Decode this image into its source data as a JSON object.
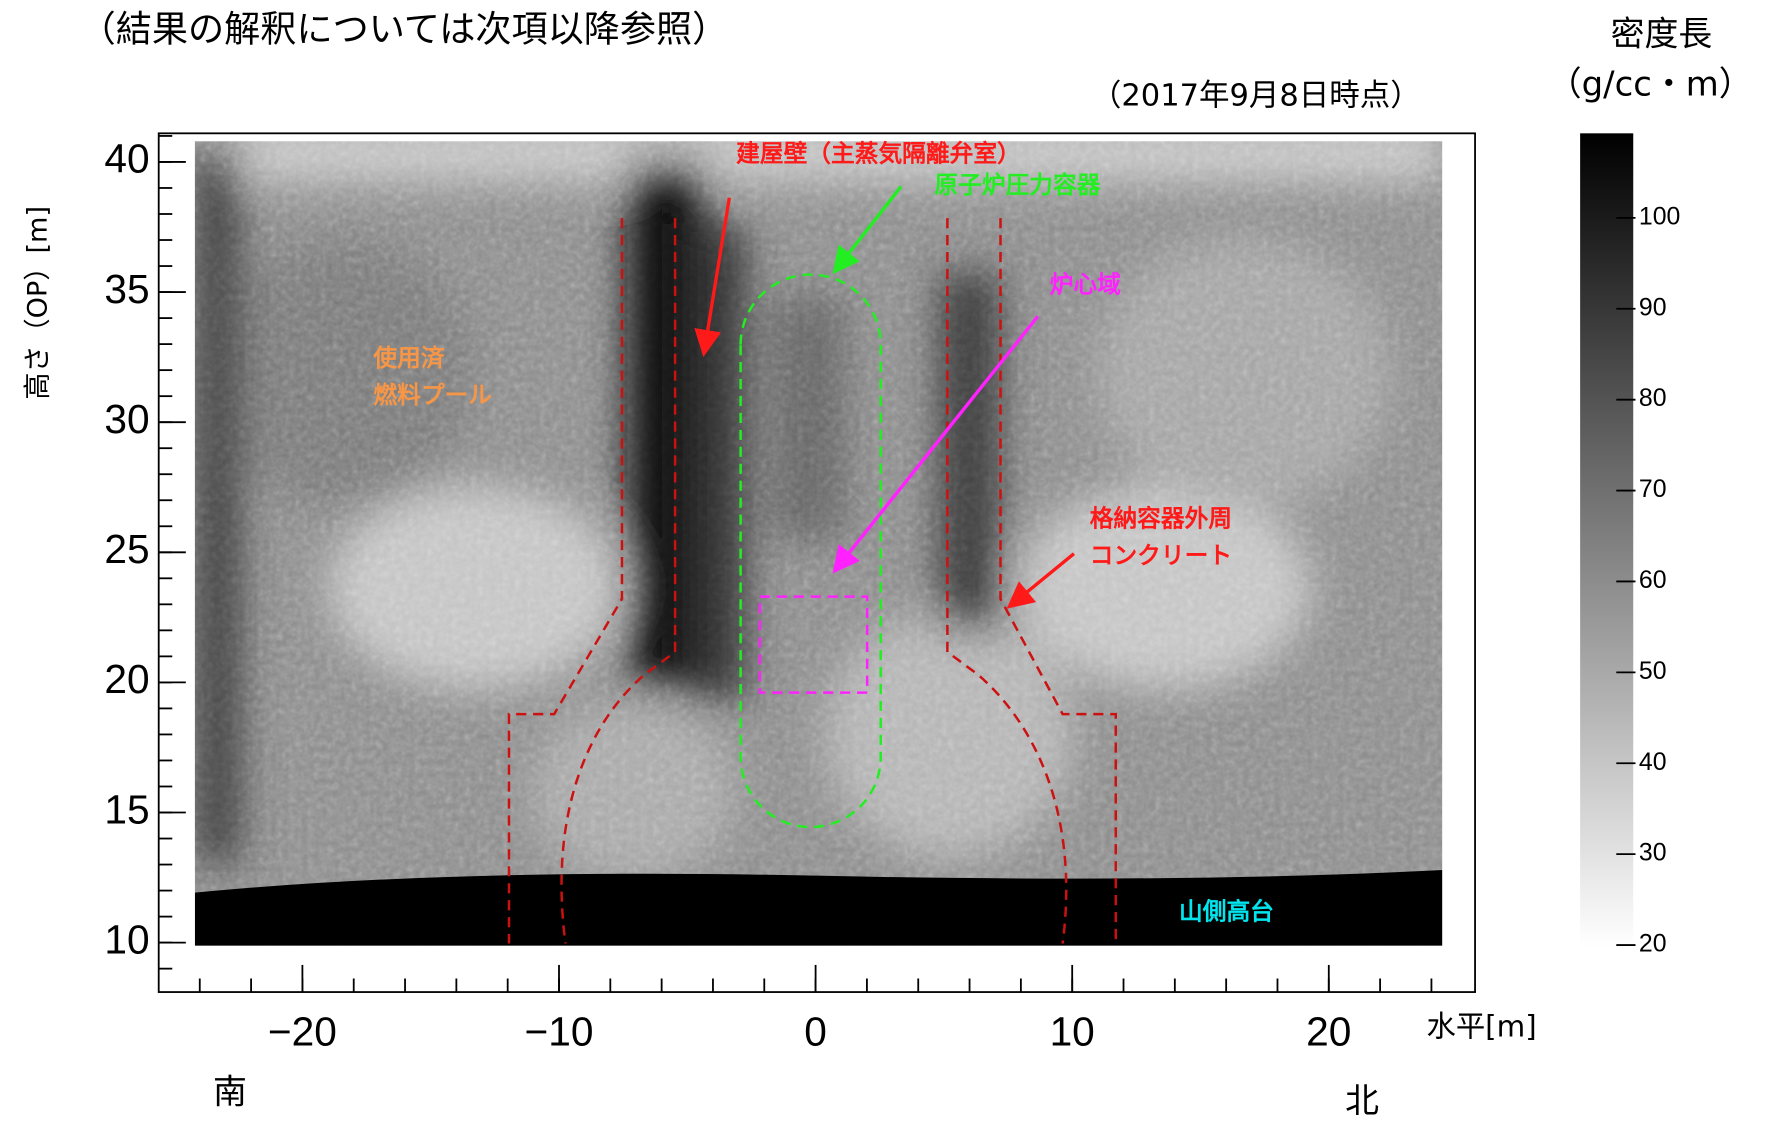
{
  "chart_data": {
    "type": "heatmap",
    "title": "（結果の解釈については次項以降参照）",
    "subtitle": "（2017年9月8日時点）",
    "colorbar_title": [
      "密度長",
      "（g/cc・m）"
    ],
    "y_label": "高さ（OP）[m]",
    "x_label": "水平[m]",
    "direction_labels": [
      "南",
      "北"
    ],
    "xlim": [
      -25.6,
      25.7
    ],
    "xticks": [
      {
        "value": -20,
        "label": "−20"
      },
      {
        "value": -10,
        "label": "−10"
      },
      0,
      10,
      20
    ],
    "ylim": [
      8.1,
      41.1
    ],
    "yticks": [
      10,
      15,
      20,
      25,
      30,
      35,
      40
    ],
    "zlim": [
      19.8,
      109.3
    ],
    "zticks": [
      20,
      30,
      40,
      50,
      60,
      70,
      80,
      90,
      100
    ],
    "annotations": [
      {
        "text": "建屋壁（主蒸気隔離弁室）",
        "color": "#ff1a1a"
      },
      {
        "text": "原子炉圧力容器",
        "color": "#22ee22"
      },
      {
        "text": "炉心域",
        "color": "#ff22ff"
      },
      {
        "text": "使用済",
        "color": "#f79646"
      },
      {
        "text": "燃料プール",
        "color": "#f79646"
      },
      {
        "text": "格納容器外周",
        "color": "#ff1a1a"
      },
      {
        "text": "コンクリート",
        "color": "#ff1a1a"
      },
      {
        "text": "山側高台",
        "color": "#00e5ee"
      }
    ]
  }
}
